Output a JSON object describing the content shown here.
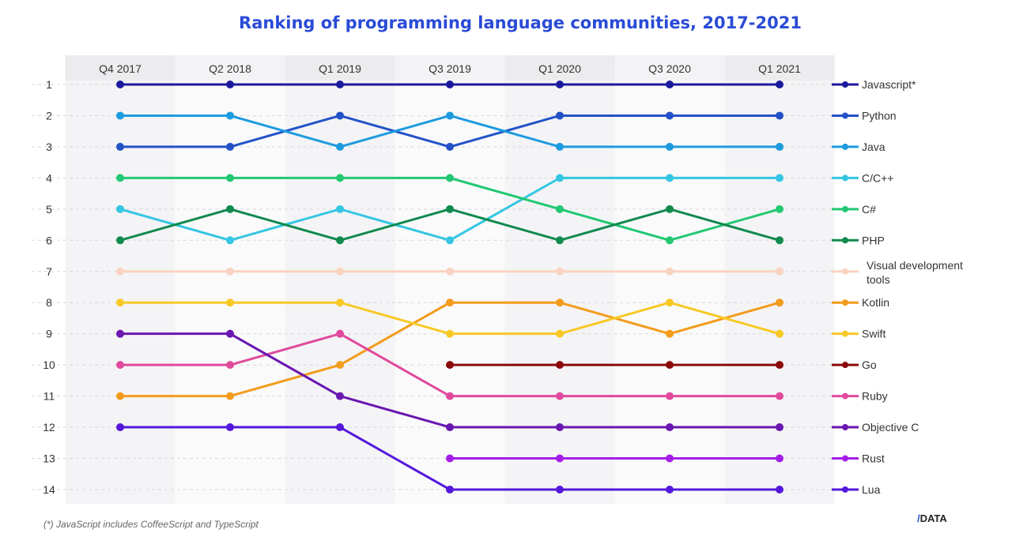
{
  "chart_data": {
    "type": "line",
    "subtype": "bump",
    "title": "Ranking of programming language communities, 2017-2021",
    "categories": [
      "Q4 2017",
      "Q2 2018",
      "Q1 2019",
      "Q3 2019",
      "Q1 2020",
      "Q3 2020",
      "Q1 2021"
    ],
    "y_ticks": [
      1,
      2,
      3,
      4,
      5,
      6,
      7,
      8,
      9,
      10,
      11,
      12,
      13,
      14
    ],
    "ylim": [
      1,
      14
    ],
    "y_inverted": true,
    "grid": "dashed horizontal",
    "legend_placement": "right",
    "series": [
      {
        "name": "Javascript*",
        "color": "#1c1a9c",
        "values": [
          1,
          1,
          1,
          1,
          1,
          1,
          1
        ]
      },
      {
        "name": "Python",
        "color": "#2352c8",
        "values": [
          3,
          3,
          2,
          3,
          2,
          2,
          2
        ]
      },
      {
        "name": "Java",
        "color": "#1e9be0",
        "values": [
          2,
          2,
          3,
          2,
          3,
          3,
          3
        ]
      },
      {
        "name": "C/C++",
        "color": "#34c6e2",
        "values": [
          5,
          6,
          5,
          6,
          4,
          4,
          4
        ]
      },
      {
        "name": "C#",
        "color": "#22c872",
        "values": [
          4,
          4,
          4,
          4,
          5,
          6,
          5
        ]
      },
      {
        "name": "PHP",
        "color": "#118a4e",
        "values": [
          6,
          5,
          6,
          5,
          6,
          5,
          6
        ]
      },
      {
        "name": "Visual development tools",
        "color": "#f9d3c0",
        "values": [
          7,
          7,
          7,
          7,
          7,
          7,
          7
        ]
      },
      {
        "name": "Kotlin",
        "color": "#f39c1c",
        "values": [
          11,
          11,
          10,
          8,
          8,
          9,
          8
        ]
      },
      {
        "name": "Swift",
        "color": "#f8c926",
        "values": [
          8,
          8,
          8,
          9,
          9,
          8,
          9
        ]
      },
      {
        "name": "Go",
        "color": "#8a0a0a",
        "values": [
          null,
          null,
          null,
          10,
          10,
          10,
          10
        ]
      },
      {
        "name": "Ruby",
        "color": "#e04a9c",
        "values": [
          10,
          10,
          9,
          11,
          11,
          11,
          11
        ]
      },
      {
        "name": "Objective C",
        "color": "#6a16b0",
        "values": [
          9,
          9,
          11,
          12,
          12,
          12,
          12
        ]
      },
      {
        "name": "Rust",
        "color": "#a51ee8",
        "values": [
          null,
          null,
          null,
          13,
          13,
          13,
          13
        ]
      },
      {
        "name": "Lua",
        "color": "#5418dc",
        "values": [
          12,
          12,
          12,
          14,
          14,
          14,
          14
        ]
      }
    ],
    "footnote": "(*) JavaScript includes CoffeeScript and TypeScript",
    "logo": "/DATA"
  }
}
